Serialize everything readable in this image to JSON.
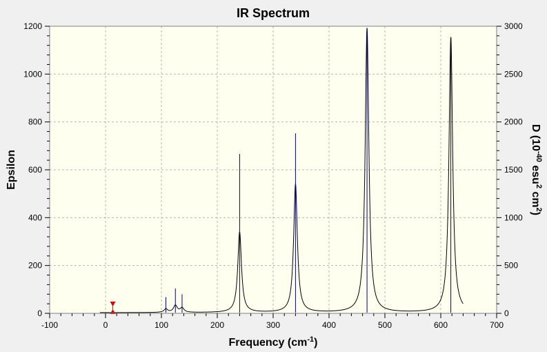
{
  "chart_data": {
    "type": "line",
    "title": "IR Spectrum",
    "xlabel": "Frequency (cm",
    "xlabel_sup": "-1",
    "xlabel_end": ")",
    "ylabel": "Epsilon",
    "y2label": "D (10",
    "y2label_sup1": "-40",
    "y2label_mid": " esu",
    "y2label_sup2": "2",
    "y2label_mid2": " cm",
    "y2label_sup3": "2",
    "y2label_end": ")",
    "xlim": [
      -100,
      700
    ],
    "ylim": [
      0,
      1200
    ],
    "y2lim": [
      0,
      3000
    ],
    "x_ticks": [
      "-100",
      "0",
      "100",
      "200",
      "300",
      "400",
      "500",
      "600",
      "700"
    ],
    "y_ticks": [
      "0",
      "200",
      "400",
      "600",
      "800",
      "1000",
      "1200"
    ],
    "y2_ticks": [
      "0",
      "500",
      "1000",
      "1500",
      "2000",
      "2500",
      "3000"
    ],
    "grid": true,
    "background_color": "#fffff0",
    "frame_color": "#f0f0f0",
    "curve_color": "#000000",
    "stick_color": "#00008b",
    "marker_color": "#dd0000",
    "marker_x": 13,
    "curve_range": [
      -10,
      640
    ],
    "hwhm": 4,
    "series": [
      {
        "kind": "curve",
        "x": [
          0,
          108,
          125,
          137,
          240,
          340,
          468,
          618
        ],
        "y": [
          0,
          17,
          33,
          23,
          338,
          538,
          1190,
          1152
        ]
      },
      {
        "kind": "sticks",
        "x": [
          108,
          125,
          137,
          240,
          340,
          468,
          618
        ],
        "y": [
          170,
          260,
          200,
          1665,
          1880,
          2980,
          2880
        ]
      }
    ]
  }
}
